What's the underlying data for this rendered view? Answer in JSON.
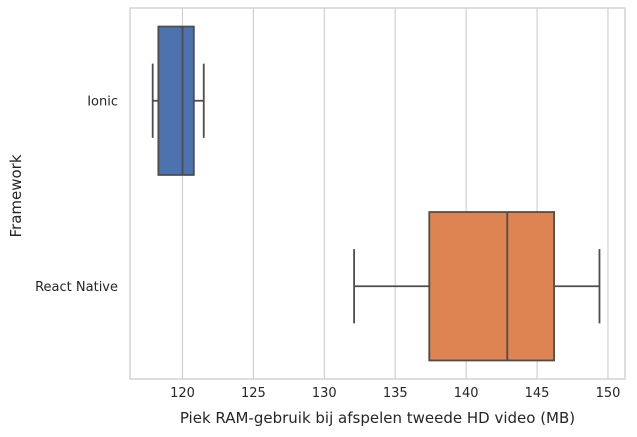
{
  "chart_data": {
    "type": "boxplot",
    "orientation": "horizontal",
    "title": "",
    "xlabel": "Piek RAM-gebruik bij afspelen tweede HD video (MB)",
    "ylabel": "Framework",
    "xlim": [
      116.3,
      151.2
    ],
    "xticks": [
      120,
      125,
      130,
      135,
      140,
      145,
      150
    ],
    "grid": true,
    "categories": [
      "Ionic",
      "React Native"
    ],
    "boxes": [
      {
        "name": "Ionic",
        "whisker_low": 117.9,
        "q1": 118.3,
        "median": 120.0,
        "q3": 120.8,
        "whisker_high": 121.5,
        "color": "#4c72b0"
      },
      {
        "name": "React Native",
        "whisker_low": 132.1,
        "q1": 137.4,
        "median": 142.9,
        "q3": 146.2,
        "whisker_high": 149.4,
        "color": "#dd8452"
      }
    ]
  }
}
